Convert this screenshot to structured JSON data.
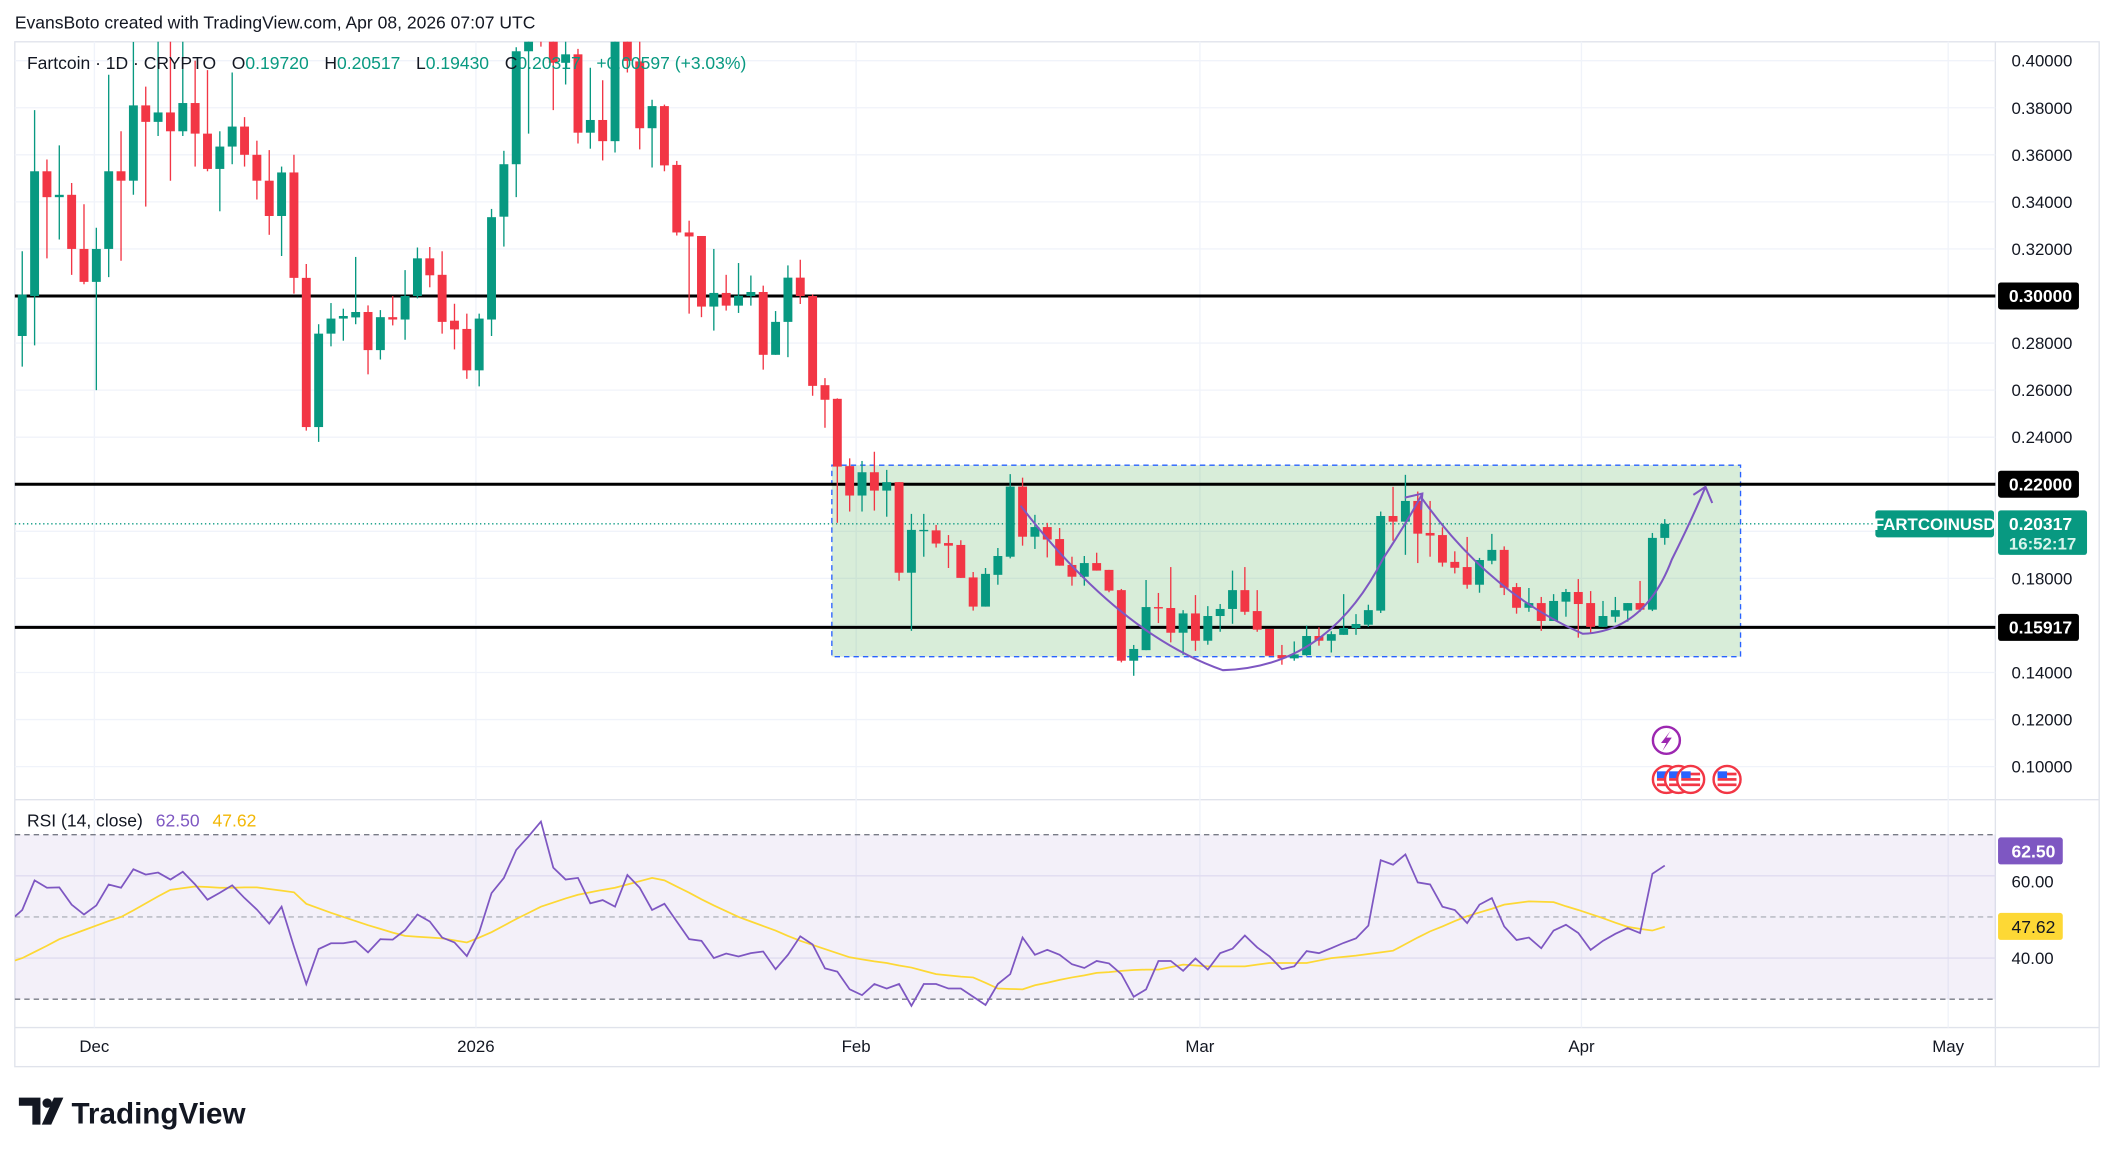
{
  "header": {
    "attribution": "EvansBoto created with TradingView.com, Apr 08, 2026 07:07 UTC"
  },
  "legend": {
    "symbol": "Fartcoin · 1D · CRYPTO",
    "o_label": "O",
    "o": "0.19720",
    "h_label": "H",
    "h": "0.20517",
    "l_label": "L",
    "l": "0.19430",
    "c_label": "C",
    "c": "0.20317",
    "change": "+0.00597 (+3.03%)"
  },
  "price_axis": {
    "ticks": [
      "0.40000",
      "0.38000",
      "0.36000",
      "0.34000",
      "0.32000",
      "0.28000",
      "0.26000",
      "0.24000",
      "0.18000",
      "0.14000",
      "0.12000",
      "0.10000"
    ],
    "hlines": [
      {
        "value": 0.3,
        "label": "0.30000"
      },
      {
        "value": 0.22,
        "label": "0.22000"
      },
      {
        "value": 0.15917,
        "label": "0.15917"
      }
    ],
    "last_price": {
      "symbol": "FARTCOINUSD",
      "value": 0.20317,
      "label": "0.20317",
      "countdown": "16:52:17"
    }
  },
  "zone": {
    "top": 0.2281,
    "bottom": 0.1467
  },
  "time_axis": {
    "labels": [
      "Dec",
      "2026",
      "Feb",
      "Mar",
      "Apr",
      "May"
    ]
  },
  "rsi": {
    "legend": "RSI (14, close)",
    "value_label": "62.50",
    "ma_label": "47.62",
    "axis_labels": [
      "60.00",
      "40.00"
    ],
    "levels": [
      70,
      50,
      30
    ]
  },
  "events": {
    "icons": [
      "lightning-event-icon",
      "us-flag-event-icon",
      "us-flag-event-icon",
      "us-flag-event-icon",
      "us-flag-event-icon"
    ]
  },
  "colors": {
    "up": "#089981",
    "down": "#f23645",
    "rsi": "#7e57c2",
    "rsi_ma": "#fdd835",
    "zone_fill": "#4caf50",
    "zone_border": "#2962ff",
    "drawing": "#7e57c2"
  },
  "footer": {
    "brand": "TradingView"
  },
  "chart_data": {
    "type": "candlestick",
    "title": "Fartcoin · 1D · CRYPTO",
    "x_range": [
      "2025-11-26",
      "2026-04-08"
    ],
    "ylim": [
      0.09,
      0.41
    ],
    "candles_ohlc": [
      [
        0.283,
        0.319,
        0.27,
        0.3006
      ],
      [
        0.3,
        0.379,
        0.279,
        0.353
      ],
      [
        0.353,
        0.358,
        0.316,
        0.342
      ],
      [
        0.342,
        0.364,
        0.324,
        0.343
      ],
      [
        0.343,
        0.348,
        0.309,
        0.32
      ],
      [
        0.32,
        0.339,
        0.305,
        0.306
      ],
      [
        0.306,
        0.329,
        0.26,
        0.32
      ],
      [
        0.32,
        0.394,
        0.308,
        0.353
      ],
      [
        0.353,
        0.37,
        0.315,
        0.349
      ],
      [
        0.349,
        0.408,
        0.343,
        0.381
      ],
      [
        0.381,
        0.389,
        0.338,
        0.374
      ],
      [
        0.374,
        0.42,
        0.368,
        0.378
      ],
      [
        0.378,
        0.42,
        0.349,
        0.37
      ],
      [
        0.37,
        0.41,
        0.368,
        0.382
      ],
      [
        0.382,
        0.4,
        0.355,
        0.369
      ],
      [
        0.369,
        0.396,
        0.353,
        0.354
      ],
      [
        0.354,
        0.37,
        0.336,
        0.3635
      ],
      [
        0.3635,
        0.395,
        0.356,
        0.372
      ],
      [
        0.372,
        0.376,
        0.355,
        0.36
      ],
      [
        0.36,
        0.366,
        0.341,
        0.349
      ],
      [
        0.349,
        0.362,
        0.326,
        0.334
      ],
      [
        0.334,
        0.355,
        0.317,
        0.3525
      ],
      [
        0.3525,
        0.36,
        0.301,
        0.3077
      ],
      [
        0.3077,
        0.3136,
        0.2428,
        0.2443
      ],
      [
        0.2443,
        0.288,
        0.238,
        0.284
      ],
      [
        0.284,
        0.297,
        0.2786,
        0.2904
      ],
      [
        0.2904,
        0.2946,
        0.281,
        0.2915
      ],
      [
        0.2909,
        0.3166,
        0.288,
        0.2932
      ],
      [
        0.2932,
        0.296,
        0.2667,
        0.277
      ],
      [
        0.277,
        0.294,
        0.273,
        0.291
      ],
      [
        0.291,
        0.3,
        0.2875,
        0.29
      ],
      [
        0.29,
        0.311,
        0.2814,
        0.3
      ],
      [
        0.3,
        0.3206,
        0.299,
        0.316
      ],
      [
        0.316,
        0.3208,
        0.3037,
        0.3088
      ],
      [
        0.309,
        0.319,
        0.284,
        0.289
      ],
      [
        0.2895,
        0.2967,
        0.2773,
        0.2858
      ],
      [
        0.286,
        0.2925,
        0.2648,
        0.2684
      ],
      [
        0.2684,
        0.2925,
        0.2616,
        0.2904
      ],
      [
        0.29,
        0.337,
        0.283,
        0.3335
      ],
      [
        0.3337,
        0.3617,
        0.321,
        0.356
      ],
      [
        0.356,
        0.4057,
        0.342,
        0.404
      ],
      [
        0.404,
        0.425,
        0.369,
        0.42
      ],
      [
        0.44,
        0.445,
        0.406,
        0.43
      ],
      [
        0.425,
        0.43,
        0.379,
        0.3991
      ],
      [
        0.3991,
        0.412,
        0.3899,
        0.4027
      ],
      [
        0.4027,
        0.405,
        0.3648,
        0.3694
      ],
      [
        0.3694,
        0.397,
        0.3626,
        0.3748
      ],
      [
        0.3748,
        0.3917,
        0.3576,
        0.3658
      ],
      [
        0.3658,
        0.43,
        0.361,
        0.425
      ],
      [
        0.425,
        0.43,
        0.395,
        0.3999
      ],
      [
        0.3997,
        0.41,
        0.3623,
        0.3713
      ],
      [
        0.3713,
        0.3834,
        0.3546,
        0.3807
      ],
      [
        0.3807,
        0.3813,
        0.353,
        0.3555
      ],
      [
        0.3557,
        0.3574,
        0.3257,
        0.327
      ],
      [
        0.327,
        0.332,
        0.2925,
        0.3253
      ],
      [
        0.3255,
        0.3255,
        0.291,
        0.2955
      ],
      [
        0.2955,
        0.32,
        0.2853,
        0.3013
      ],
      [
        0.3013,
        0.309,
        0.2938,
        0.2959
      ],
      [
        0.2959,
        0.314,
        0.2928,
        0.3001
      ],
      [
        0.3,
        0.3087,
        0.2959,
        0.3017
      ],
      [
        0.3017,
        0.3044,
        0.2687,
        0.275
      ],
      [
        0.275,
        0.2936,
        0.275,
        0.289
      ],
      [
        0.289,
        0.313,
        0.274,
        0.3078
      ],
      [
        0.3078,
        0.3154,
        0.2966,
        0.3
      ],
      [
        0.3,
        0.3007,
        0.2576,
        0.2618
      ],
      [
        0.2621,
        0.2651,
        0.244,
        0.2559
      ],
      [
        0.2563,
        0.2565,
        0.2036,
        0.2275
      ],
      [
        0.2277,
        0.231,
        0.2084,
        0.2152
      ],
      [
        0.2152,
        0.2299,
        0.2084,
        0.2251
      ],
      [
        0.2251,
        0.2338,
        0.2088,
        0.2173
      ],
      [
        0.2173,
        0.2261,
        0.2062,
        0.2209
      ],
      [
        0.2209,
        0.2209,
        0.179,
        0.1824
      ],
      [
        0.1824,
        0.2074,
        0.1577,
        0.2006
      ],
      [
        0.2004,
        0.2074,
        0.1892,
        0.2006
      ],
      [
        0.2004,
        0.2027,
        0.1931,
        0.1948
      ],
      [
        0.195,
        0.1984,
        0.1844,
        0.1939
      ],
      [
        0.1942,
        0.1962,
        0.1802,
        0.1802
      ],
      [
        0.1804,
        0.1827,
        0.1663,
        0.168
      ],
      [
        0.168,
        0.1844,
        0.168,
        0.1819
      ],
      [
        0.1815,
        0.1929,
        0.1773,
        0.1895
      ],
      [
        0.1892,
        0.2243,
        0.1885,
        0.219
      ],
      [
        0.219,
        0.2228,
        0.1939,
        0.1977
      ],
      [
        0.1977,
        0.207,
        0.1925,
        0.2018
      ],
      [
        0.2018,
        0.2036,
        0.1889,
        0.1965
      ],
      [
        0.1967,
        0.2014,
        0.1854,
        0.1854
      ],
      [
        0.1857,
        0.1892,
        0.1769,
        0.1807
      ],
      [
        0.1807,
        0.1895,
        0.1769,
        0.1865
      ],
      [
        0.1865,
        0.1909,
        0.1833,
        0.1833
      ],
      [
        0.1836,
        0.1836,
        0.1741,
        0.1748
      ],
      [
        0.175,
        0.1755,
        0.1443,
        0.145
      ],
      [
        0.145,
        0.1517,
        0.1386,
        0.15
      ],
      [
        0.1495,
        0.1793,
        0.1495,
        0.1678
      ],
      [
        0.1678,
        0.1738,
        0.161,
        0.1672
      ],
      [
        0.1674,
        0.1848,
        0.1528,
        0.1569
      ],
      [
        0.1569,
        0.1665,
        0.1475,
        0.1651
      ],
      [
        0.1651,
        0.1729,
        0.1492,
        0.1535
      ],
      [
        0.1535,
        0.1682,
        0.1518,
        0.164
      ],
      [
        0.164,
        0.1691,
        0.1573,
        0.167
      ],
      [
        0.167,
        0.1833,
        0.1607,
        0.175
      ],
      [
        0.175,
        0.1848,
        0.1645,
        0.1658
      ],
      [
        0.1661,
        0.175,
        0.1573,
        0.1582
      ],
      [
        0.1585,
        0.1585,
        0.1471,
        0.1471
      ],
      [
        0.1474,
        0.1517,
        0.1433,
        0.146
      ],
      [
        0.146,
        0.1532,
        0.145,
        0.1477
      ],
      [
        0.1474,
        0.1599,
        0.1471,
        0.1555
      ],
      [
        0.1555,
        0.1592,
        0.1514,
        0.1535
      ],
      [
        0.1535,
        0.1575,
        0.1485,
        0.1563
      ],
      [
        0.156,
        0.1733,
        0.156,
        0.1589
      ],
      [
        0.1589,
        0.1648,
        0.156,
        0.1606
      ],
      [
        0.1603,
        0.1688,
        0.1594,
        0.1665
      ],
      [
        0.1663,
        0.2084,
        0.1653,
        0.2065
      ],
      [
        0.2065,
        0.2189,
        0.196,
        0.2041
      ],
      [
        0.2041,
        0.224,
        0.19,
        0.2129
      ],
      [
        0.2129,
        0.2169,
        0.1865,
        0.199
      ],
      [
        0.1993,
        0.2129,
        0.1892,
        0.1982
      ],
      [
        0.1984,
        0.2017,
        0.185,
        0.1867
      ],
      [
        0.187,
        0.1915,
        0.1821,
        0.1845
      ],
      [
        0.1848,
        0.1976,
        0.1756,
        0.1773
      ],
      [
        0.1773,
        0.1887,
        0.1739,
        0.1878
      ],
      [
        0.1875,
        0.1989,
        0.186,
        0.1921
      ],
      [
        0.1921,
        0.1936,
        0.1729,
        0.176
      ],
      [
        0.1763,
        0.178,
        0.165,
        0.1675
      ],
      [
        0.1675,
        0.1759,
        0.1658,
        0.1695
      ],
      [
        0.1695,
        0.1721,
        0.1577,
        0.1619
      ],
      [
        0.1619,
        0.1733,
        0.1619,
        0.1704
      ],
      [
        0.1701,
        0.1755,
        0.1637,
        0.1742
      ],
      [
        0.1742,
        0.1797,
        0.1548,
        0.1691
      ],
      [
        0.1695,
        0.1746,
        0.1565,
        0.1594
      ],
      [
        0.1594,
        0.1704,
        0.1594,
        0.164
      ],
      [
        0.1637,
        0.1721,
        0.1613,
        0.1665
      ],
      [
        0.1663,
        0.1695,
        0.1616,
        0.1695
      ],
      [
        0.1695,
        0.1789,
        0.1658,
        0.1667
      ],
      [
        0.1667,
        0.1993,
        0.1661,
        0.1972
      ],
      [
        0.1972,
        0.20517,
        0.1943,
        0.20317
      ]
    ],
    "rsi_values": [
      51.7,
      58.9,
      57.1,
      57.2,
      53.0,
      50.6,
      52.8,
      57.9,
      57.1,
      61.6,
      60.3,
      60.8,
      59.1,
      61.0,
      57.9,
      54.2,
      55.9,
      57.7,
      54.6,
      51.8,
      48.4,
      52.5,
      42.8,
      33.7,
      42.2,
      43.6,
      43.6,
      44.1,
      41.4,
      44.6,
      44.5,
      46.8,
      50.6,
      48.9,
      45.0,
      43.8,
      40.5,
      46.3,
      55.8,
      59.5,
      66.3,
      69.6,
      73.2,
      62.0,
      59.1,
      59.5,
      53.3,
      54.1,
      52.5,
      60.2,
      57.1,
      51.7,
      53.2,
      48.9,
      44.6,
      44.2,
      40.0,
      41.1,
      40.4,
      41.2,
      41.6,
      37.3,
      40.8,
      45.3,
      43.3,
      37.5,
      36.7,
      32.4,
      31.0,
      33.7,
      32.6,
      33.7,
      28.4,
      33.7,
      33.7,
      32.6,
      32.6,
      30.6,
      28.6,
      33.7,
      36.1,
      45.0,
      40.8,
      42.0,
      40.8,
      38.5,
      37.6,
      39.3,
      38.7,
      36.1,
      30.6,
      32.4,
      39.3,
      39.3,
      36.9,
      39.9,
      37.2,
      41.2,
      42.3,
      45.5,
      42.6,
      40.4,
      37.3,
      38.0,
      41.7,
      41.2,
      42.4,
      43.7,
      44.8,
      47.9,
      63.8,
      62.7,
      65.2,
      58.4,
      57.9,
      52.5,
      51.7,
      48.5,
      53.0,
      54.6,
      47.7,
      44.4,
      45.0,
      42.4,
      46.7,
      48.1,
      46.1,
      42.0,
      44.2,
      45.9,
      47.3,
      46.1,
      60.5,
      62.5
    ],
    "rsi_ma_values": [
      40,
      41.5,
      43,
      44.6,
      45.7,
      46.8,
      47.9,
      49,
      50,
      51.6,
      53.3,
      55,
      56.6,
      57,
      57.4,
      57.3,
      57.1,
      57.1,
      57.2,
      57.2,
      56.8,
      56.4,
      56,
      53.2,
      52.1,
      51,
      50,
      49,
      48,
      47.1,
      46.2,
      45.4,
      45.2,
      45,
      44.8,
      44.3,
      43.8,
      45,
      46.3,
      47.9,
      49.5,
      51,
      52.5,
      53.5,
      54.5,
      55.4,
      56,
      56.6,
      57.1,
      57.9,
      58.7,
      59.5,
      58.9,
      57.4,
      55.9,
      54.3,
      52.8,
      51.4,
      50,
      48.9,
      47.8,
      46.7,
      45.4,
      44.2,
      43.2,
      42.2,
      41.2,
      40.2,
      39.7,
      39.2,
      38.8,
      38.2,
      37.7,
      36.9,
      36.1,
      35.8,
      35.5,
      35.3,
      34,
      32.6,
      32.5,
      32.4,
      33.4,
      34,
      34.7,
      35.3,
      35.8,
      36.4,
      36.6,
      36.9,
      37.1,
      37.2,
      37.2,
      37.8,
      38.4,
      38.2,
      38,
      38,
      38,
      38,
      38.4,
      38.8,
      38.8,
      38.8,
      38.8,
      39.4,
      40,
      40.3,
      40.6,
      41,
      41.4,
      41.8,
      43.4,
      45,
      46.5,
      47.7,
      49,
      50.2,
      51.1,
      52,
      53,
      53.4,
      53.8,
      53.7,
      53.6,
      52.6,
      51.7,
      50.7,
      49.7,
      48.6,
      47.6,
      47.1,
      46.7,
      47.62
    ]
  }
}
